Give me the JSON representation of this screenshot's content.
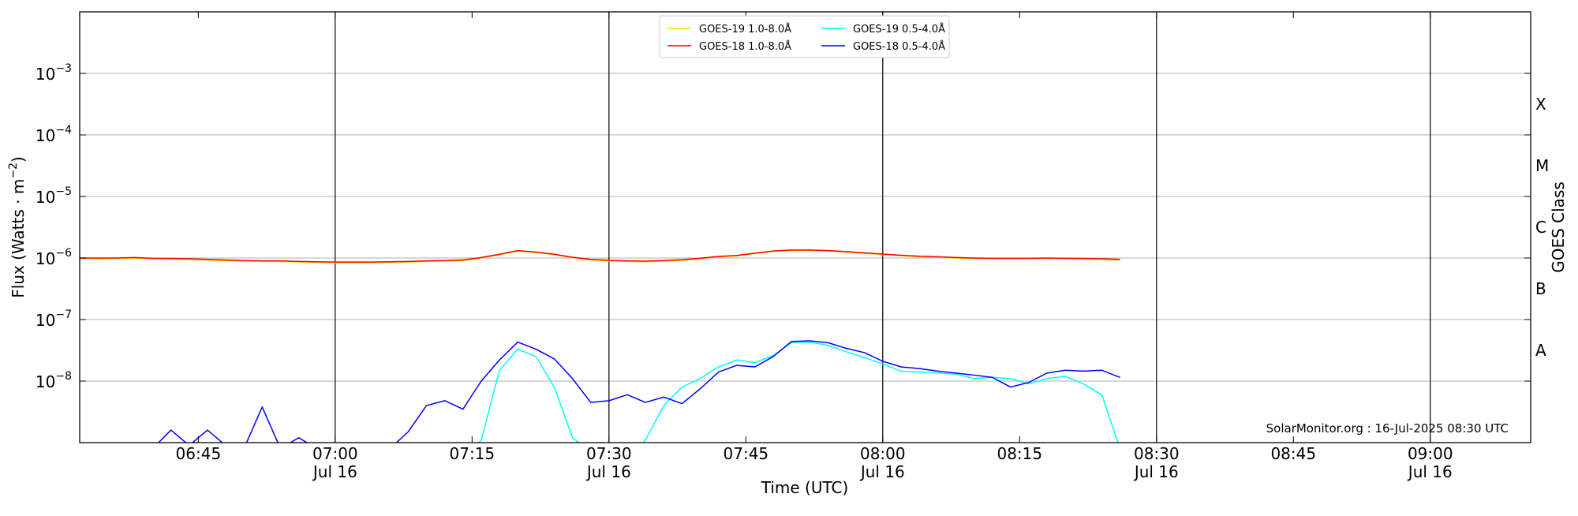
{
  "chart_data": {
    "type": "line",
    "y_label": "Flux (Watts · m",
    "y_label_exponent": "−2",
    "y_label_end": ")",
    "x_label": "Time (UTC)",
    "y2_label": "GOES Class",
    "annotation": "SolarMonitor.org : 16-Jul-2025 08:30 UTC",
    "log_y": true,
    "grid": true,
    "legend_position": "top-center",
    "xlim": [
      "06:32",
      "09:11"
    ],
    "xticks": [
      {
        "value": "06:45",
        "label": "06:45",
        "major": false
      },
      {
        "value": "07:00",
        "label": "07:00",
        "sublabel": "Jul 16",
        "major": true
      },
      {
        "value": "07:15",
        "label": "07:15",
        "major": false
      },
      {
        "value": "07:30",
        "label": "07:30",
        "sublabel": "Jul 16",
        "major": true
      },
      {
        "value": "07:45",
        "label": "07:45",
        "major": false
      },
      {
        "value": "08:00",
        "label": "08:00",
        "sublabel": "Jul 16",
        "major": true
      },
      {
        "value": "08:15",
        "label": "08:15",
        "major": false
      },
      {
        "value": "08:30",
        "label": "08:30",
        "sublabel": "Jul 16",
        "major": true
      },
      {
        "value": "08:45",
        "label": "08:45",
        "major": false
      },
      {
        "value": "09:00",
        "label": "09:00",
        "sublabel": "Jul 16",
        "major": true
      }
    ],
    "ylim": [
      1e-09,
      0.01
    ],
    "yticks": [
      {
        "value": 1e-08,
        "label": "10",
        "exponent": "−8"
      },
      {
        "value": 1e-07,
        "label": "10",
        "exponent": "−7"
      },
      {
        "value": 1e-06,
        "label": "10",
        "exponent": "−6"
      },
      {
        "value": 1e-05,
        "label": "10",
        "exponent": "−5"
      },
      {
        "value": 0.0001,
        "label": "10",
        "exponent": "−4"
      },
      {
        "value": 0.001,
        "label": "10",
        "exponent": "−3"
      }
    ],
    "goes_classes": [
      {
        "label": "A",
        "range": [
          1e-08,
          1e-07
        ]
      },
      {
        "label": "B",
        "range": [
          1e-07,
          1e-06
        ]
      },
      {
        "label": "C",
        "range": [
          1e-06,
          1e-05
        ]
      },
      {
        "label": "M",
        "range": [
          1e-05,
          0.0001
        ]
      },
      {
        "label": "X",
        "range": [
          0.0001,
          0.001
        ]
      }
    ],
    "x": [
      "06:32",
      "06:34",
      "06:36",
      "06:38",
      "06:40",
      "06:42",
      "06:44",
      "06:46",
      "06:48",
      "06:50",
      "06:52",
      "06:54",
      "06:56",
      "06:58",
      "07:00",
      "07:02",
      "07:04",
      "07:06",
      "07:08",
      "07:10",
      "07:12",
      "07:14",
      "07:16",
      "07:18",
      "07:20",
      "07:22",
      "07:24",
      "07:26",
      "07:28",
      "07:30",
      "07:32",
      "07:34",
      "07:36",
      "07:38",
      "07:40",
      "07:42",
      "07:44",
      "07:46",
      "07:48",
      "07:50",
      "07:52",
      "07:54",
      "07:56",
      "07:58",
      "08:00",
      "08:02",
      "08:04",
      "08:06",
      "08:08",
      "08:10",
      "08:12",
      "08:14",
      "08:16",
      "08:18",
      "08:20",
      "08:22",
      "08:24",
      "08:26"
    ],
    "series": [
      {
        "name": "GOES-19 1.0-8.0Å",
        "color": "#ffd700",
        "values": [
          9.7e-07,
          9.7e-07,
          9.8e-07,
          1e-06,
          9.7e-07,
          9.6e-07,
          9.5e-07,
          9.3e-07,
          9.1e-07,
          8.9e-07,
          8.8e-07,
          8.8e-07,
          8.6e-07,
          8.5e-07,
          8.4e-07,
          8.4e-07,
          8.4e-07,
          8.5e-07,
          8.6e-07,
          8.8e-07,
          8.9e-07,
          9.1e-07,
          1e-06,
          1.13e-06,
          1.3e-06,
          1.23e-06,
          1.13e-06,
          1.01e-06,
          9.3e-07,
          9e-07,
          8.8e-07,
          8.7e-07,
          8.9e-07,
          9.2e-07,
          9.7e-07,
          1.04e-06,
          1.08e-06,
          1.18e-06,
          1.28e-06,
          1.33e-06,
          1.33e-06,
          1.3e-06,
          1.25e-06,
          1.19e-06,
          1.14e-06,
          1.09e-06,
          1.05e-06,
          1.03e-06,
          1e-06,
          9.8e-07,
          9.7e-07,
          9.7e-07,
          9.7e-07,
          9.8e-07,
          9.7e-07,
          9.6e-07,
          9.5e-07,
          9.3e-07
        ]
      },
      {
        "name": "GOES-18 1.0-8.0Å",
        "color": "#ff0000",
        "values": [
          1e-06,
          1e-06,
          1e-06,
          1.02e-06,
          9.9e-07,
          9.8e-07,
          9.7e-07,
          9.5e-07,
          9.3e-07,
          9.1e-07,
          9e-07,
          9e-07,
          8.8e-07,
          8.7e-07,
          8.6e-07,
          8.6e-07,
          8.6e-07,
          8.7e-07,
          8.8e-07,
          9e-07,
          9.1e-07,
          9.3e-07,
          1.02e-06,
          1.15e-06,
          1.32e-06,
          1.25e-06,
          1.15e-06,
          1.03e-06,
          9.5e-07,
          9.2e-07,
          9e-07,
          8.9e-07,
          9.1e-07,
          9.4e-07,
          9.9e-07,
          1.06e-06,
          1.1e-06,
          1.2e-06,
          1.3e-06,
          1.35e-06,
          1.35e-06,
          1.32e-06,
          1.27e-06,
          1.21e-06,
          1.16e-06,
          1.11e-06,
          1.07e-06,
          1.05e-06,
          1.02e-06,
          1e-06,
          9.9e-07,
          9.9e-07,
          9.9e-07,
          1e-06,
          9.9e-07,
          9.8e-07,
          9.7e-07,
          9.5e-07
        ]
      },
      {
        "name": "GOES-19 0.5-4.0Å",
        "color": "#00ffff",
        "values": [
          null,
          null,
          null,
          null,
          null,
          null,
          null,
          null,
          null,
          null,
          null,
          null,
          null,
          null,
          null,
          null,
          null,
          null,
          null,
          null,
          null,
          5e-10,
          1.1e-09,
          1.5e-08,
          3.3e-08,
          2.5e-08,
          8e-09,
          1.2e-09,
          7e-10,
          5e-10,
          5e-10,
          1.1e-09,
          4e-09,
          8e-09,
          1.1e-08,
          1.7e-08,
          2.2e-08,
          2e-08,
          2.6e-08,
          4.2e-08,
          4.3e-08,
          3.8e-08,
          3e-08,
          2.4e-08,
          1.9e-08,
          1.45e-08,
          1.4e-08,
          1.35e-08,
          1.3e-08,
          1.1e-08,
          1.15e-08,
          1.1e-08,
          9e-09,
          1.1e-08,
          1.2e-08,
          9e-09,
          6e-09,
          8e-10
        ]
      },
      {
        "name": "GOES-18 0.5-4.0Å",
        "color": "#0000ff",
        "values": [
          8e-10,
          8e-10,
          8e-10,
          8e-10,
          8e-10,
          1.6e-09,
          9e-10,
          1.6e-09,
          9e-10,
          8e-10,
          3.8e-09,
          8e-10,
          1.2e-09,
          8e-10,
          8e-10,
          8e-10,
          8e-10,
          8e-10,
          1.5e-09,
          4e-09,
          4.8e-09,
          3.5e-09,
          1e-08,
          2.2e-08,
          4.3e-08,
          3.3e-08,
          2.3e-08,
          1.1e-08,
          4.5e-09,
          4.8e-09,
          6e-09,
          4.5e-09,
          5.5e-09,
          4.3e-09,
          7.5e-09,
          1.4e-08,
          1.8e-08,
          1.7e-08,
          2.5e-08,
          4.4e-08,
          4.5e-08,
          4.2e-08,
          3.4e-08,
          2.9e-08,
          2.1e-08,
          1.7e-08,
          1.6e-08,
          1.45e-08,
          1.35e-08,
          1.25e-08,
          1.15e-08,
          8e-09,
          9.5e-09,
          1.35e-08,
          1.5e-08,
          1.45e-08,
          1.5e-08,
          1.15e-08
        ]
      }
    ]
  }
}
